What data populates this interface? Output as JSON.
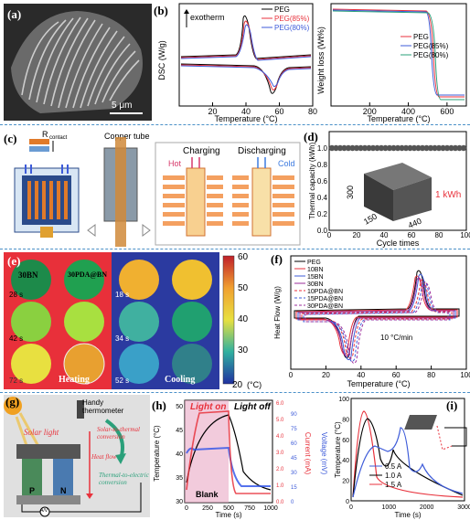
{
  "labels": {
    "a": "(a)",
    "b": "(b)",
    "c": "(c)",
    "d": "(d)",
    "e": "(e)",
    "f": "(f)",
    "g": "(g)",
    "h": "(h)",
    "i": "(i)"
  },
  "panel_a": {
    "scale_bar": "5 μm"
  },
  "panel_c": {
    "r_contact": "R",
    "r_sub": "contact",
    "copper_tube": "Copper tube",
    "charging": "Charging",
    "discharging": "Discharging",
    "hot": "Hot",
    "cold": "Cold"
  },
  "panel_e": {
    "tl": "30BN",
    "tr": "30PDA@BN",
    "h_times": [
      "28 s",
      "42 s",
      "72 s"
    ],
    "c_times": [
      "18 s",
      "34 s",
      "52 s"
    ],
    "heating": "Heating",
    "cooling": "Cooling",
    "cb_ticks": [
      "60",
      "50",
      "40",
      "30",
      "20"
    ],
    "cb_unit": "(°C)"
  },
  "panel_g": {
    "thermometer": "Handy thermometer",
    "solar": "Solar light",
    "s2t": "Solar-to-thermal conversion",
    "t2e": "Thermal-to-electric conversion",
    "heat_flow": "Heat flow",
    "p": "P",
    "n": "N",
    "meter": "A/V"
  },
  "chart_data": [
    {
      "id": "b1",
      "type": "line",
      "xlabel": "Temperature (°C)",
      "ylabel": "DSC (W/g)",
      "annotation": "exotherm",
      "xlim": [
        0,
        80
      ],
      "xticks": [
        20,
        40,
        60,
        80
      ],
      "series": [
        {
          "name": "PEG",
          "color": "#000000"
        },
        {
          "name": "PEG(85%)",
          "color": "#e8323c"
        },
        {
          "name": "PEG(80%)",
          "color": "#3d5bd9"
        }
      ]
    },
    {
      "id": "b2",
      "type": "line",
      "xlabel": "Temperature (°C)",
      "ylabel": "Weight loss (Wt%)",
      "xlim": [
        0,
        700
      ],
      "xticks": [
        200,
        400,
        600
      ],
      "series": [
        {
          "name": "PEG",
          "color": "#e8323c"
        },
        {
          "name": "PEG(85%)",
          "color": "#3d5bd9"
        },
        {
          "name": "PEG(80%)",
          "color": "#2aa07a"
        }
      ]
    },
    {
      "id": "d",
      "type": "scatter",
      "xlabel": "Cycle times",
      "ylabel": "Thermal capacity (kWh)",
      "xlim": [
        0,
        100
      ],
      "ylim": [
        0,
        1.2
      ],
      "xticks": [
        0,
        20,
        40,
        60,
        80,
        100
      ],
      "yticks": [
        0.0,
        0.2,
        0.4,
        0.6,
        0.8,
        1.0
      ],
      "value": 1.0,
      "dims": [
        "300",
        "150",
        "440"
      ],
      "label": "1 kWh"
    },
    {
      "id": "f",
      "type": "line",
      "xlabel": "Temperature (°C)",
      "ylabel": "Heat Flow (W/g)",
      "annotation": "10 °C/min",
      "xlim": [
        0,
        100
      ],
      "xticks": [
        0,
        20,
        40,
        60,
        80,
        100
      ],
      "series": [
        {
          "name": "PEG",
          "color": "#000000"
        },
        {
          "name": "10BN",
          "color": "#e8323c"
        },
        {
          "name": "15BN",
          "color": "#3d5bd9"
        },
        {
          "name": "30BN",
          "color": "#9b2d9b"
        },
        {
          "name": "10PDA@BN",
          "color": "#e8323c"
        },
        {
          "name": "15PDA@BN",
          "color": "#3d5bd9"
        },
        {
          "name": "30PDA@BN",
          "color": "#9b2d9b"
        }
      ]
    },
    {
      "id": "h",
      "type": "line",
      "xlabel": "Time (s)",
      "ylabel": "Temperature (°C)",
      "ylabel2": "Current (mA)",
      "ylabel3": "Voltage (mV)",
      "light_on": "Light on",
      "light_off": "Light off",
      "blank": "Blank",
      "xticks": [
        0,
        250,
        500,
        750,
        1000
      ],
      "yticks": [
        30,
        35,
        40,
        45,
        50
      ],
      "y2ticks": [
        "0.0",
        "1.0",
        "2.0",
        "3.0",
        "4.0",
        "5.0",
        "6.0"
      ],
      "y3ticks": [
        0,
        15,
        30,
        45,
        60,
        75,
        90
      ]
    },
    {
      "id": "i",
      "type": "line",
      "xlabel": "Time (s)",
      "ylabel": "Temperature (°C)",
      "xlim": [
        0,
        3000
      ],
      "ylim": [
        0,
        100
      ],
      "xticks": [
        0,
        1000,
        2000,
        3000
      ],
      "yticks": [
        0,
        20,
        40,
        60,
        80,
        100
      ],
      "series": [
        {
          "name": "0.5 A",
          "color": "#3d5bd9"
        },
        {
          "name": "1.0 A",
          "color": "#000000"
        },
        {
          "name": "1.5 A",
          "color": "#e8323c"
        }
      ]
    }
  ]
}
